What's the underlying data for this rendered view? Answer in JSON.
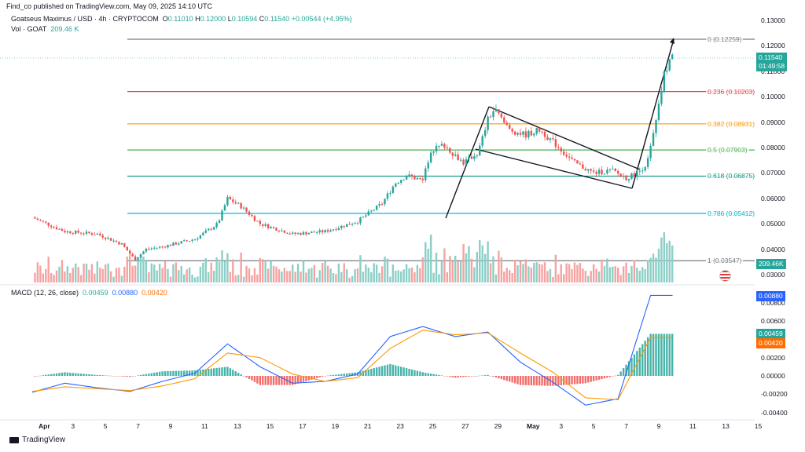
{
  "header": {
    "published": "Find_co published on TradingView.com, May 09, 2025 14:10 UTC",
    "symbol": "Goatseus Maximus / USD · 4h · CRYPTOCOM",
    "ohlc": {
      "o_label": "O",
      "o": "0.11010",
      "h_label": "H",
      "h": "0.12000",
      "l_label": "L",
      "l": "0.10594",
      "c_label": "C",
      "c": "0.11540",
      "change": "+0.00544 (+4.95%)"
    },
    "vol_label": "Vol · GOAT",
    "vol_value": "209.46 K",
    "macd_label": "MACD (12, 26, close)",
    "macd_hist": "0.00459",
    "macd_line": "0.00880",
    "macd_signal": "0.00420"
  },
  "price_axis": [
    "0.13000",
    "0.12000",
    "0.11000",
    "0.10000",
    "0.09000",
    "0.08000",
    "0.07000",
    "0.06000",
    "0.05000",
    "0.04000",
    "0.03000"
  ],
  "macd_axis": [
    "0.00800",
    "0.00600",
    "0.00400",
    "0.00200",
    "0.00000",
    "-0.00200",
    "-0.00400"
  ],
  "badges": {
    "price": "0.11540",
    "countdown": "01:49:58",
    "volume": "209.46K",
    "macd_line": "0.00880",
    "macd_hist": "0.00459",
    "macd_signal": "0.00420"
  },
  "time_axis": [
    "Apr",
    "3",
    "5",
    "7",
    "9",
    "11",
    "13",
    "15",
    "17",
    "19",
    "21",
    "23",
    "25",
    "27",
    "29",
    "May",
    "3",
    "5",
    "7",
    "9",
    "11",
    "13",
    "15"
  ],
  "fib_levels": [
    {
      "label": "0 (0.12259)",
      "value": 0.12259,
      "color": "#787b86"
    },
    {
      "label": "0.236 (0.10203)",
      "value": 0.10203,
      "color": "#f23645"
    },
    {
      "label": "0.382 (0.08931)",
      "value": 0.08931,
      "color": "#ff9800"
    },
    {
      "label": "0.5 (0.07903)",
      "value": 0.07903,
      "color": "#4caf50"
    },
    {
      "label": "0.618 (0.06875)",
      "value": 0.06875,
      "color": "#089981"
    },
    {
      "label": "0.786 (0.05412)",
      "value": 0.05412,
      "color": "#00bcd4"
    },
    {
      "label": "1 (0.03547)",
      "value": 0.03547,
      "color": "#787b86"
    }
  ],
  "colors": {
    "up": "#26a69a",
    "down": "#ef5350",
    "macd": "#2962ff",
    "signal": "#ff9800"
  },
  "brand": "TradingView",
  "chart_data": {
    "type": "candlestick",
    "timeframe": "4h",
    "approx_close_series_daily": {
      "x": [
        "Apr 1",
        "Apr 3",
        "Apr 5",
        "Apr 7",
        "Apr 9",
        "Apr 11",
        "Apr 13",
        "Apr 15",
        "Apr 17",
        "Apr 19",
        "Apr 21",
        "Apr 23",
        "Apr 25",
        "Apr 27",
        "Apr 29",
        "May 1",
        "May 3",
        "May 5",
        "May 7",
        "May 9"
      ],
      "close": [
        0.0525,
        0.047,
        0.046,
        0.038,
        0.041,
        0.044,
        0.057,
        0.049,
        0.046,
        0.047,
        0.051,
        0.066,
        0.079,
        0.072,
        0.091,
        0.086,
        0.079,
        0.07,
        0.069,
        0.1154
      ]
    },
    "macd": {
      "x": [
        "Apr 1",
        "Apr 3",
        "Apr 5",
        "Apr 7",
        "Apr 9",
        "Apr 11",
        "Apr 13",
        "Apr 15",
        "Apr 17",
        "Apr 19",
        "Apr 21",
        "Apr 23",
        "Apr 25",
        "Apr 27",
        "Apr 29",
        "May 1",
        "May 3",
        "May 5",
        "May 7",
        "May 9"
      ],
      "line": [
        -0.0018,
        -0.0008,
        -0.0013,
        -0.0017,
        -0.0006,
        0.0003,
        0.0035,
        0.001,
        -0.0008,
        -0.0006,
        0.0002,
        0.0043,
        0.0054,
        0.0043,
        0.0048,
        0.0015,
        -0.0007,
        -0.0032,
        -0.0025,
        0.0088
      ],
      "signal": [
        -0.0017,
        -0.0012,
        -0.0014,
        -0.0016,
        -0.0011,
        -0.0003,
        0.0025,
        0.002,
        0.0002,
        -0.0006,
        -0.0002,
        0.003,
        0.005,
        0.0045,
        0.0047,
        0.0025,
        0.0004,
        -0.0024,
        -0.0026,
        0.0042
      ]
    },
    "ylim": [
      0.03,
      0.13
    ],
    "macd_ylim": [
      -0.0045,
      0.0095
    ]
  }
}
